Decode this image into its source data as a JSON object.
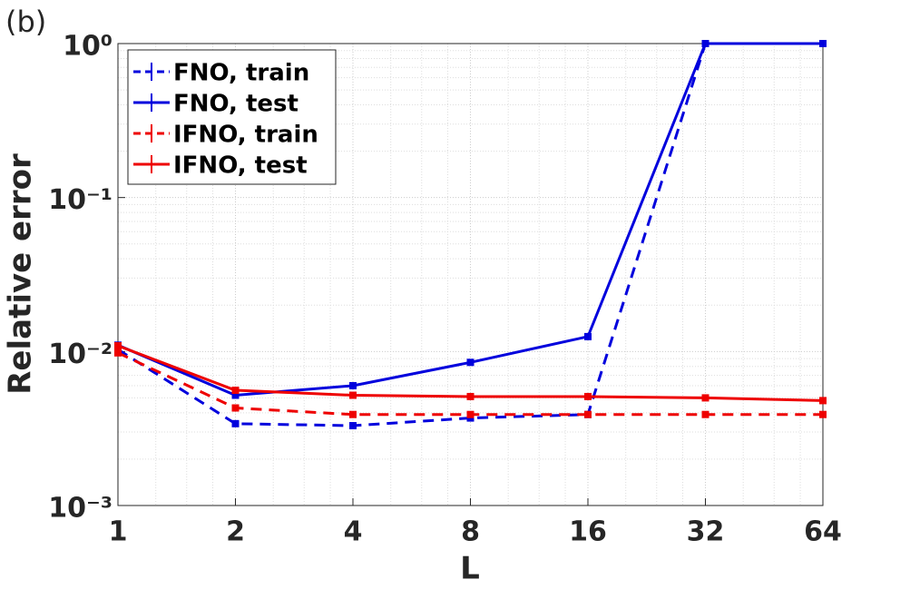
{
  "chart_data": {
    "type": "line",
    "panel_label": "(b)",
    "xlabel": "L",
    "ylabel": "Relative error",
    "x": [
      1,
      2,
      4,
      8,
      16,
      32,
      64
    ],
    "xscale": "log",
    "yscale": "log",
    "xlim": [
      1,
      64
    ],
    "xticks": [
      1,
      2,
      4,
      8,
      16,
      32,
      64
    ],
    "ylim": [
      0.001,
      1
    ],
    "yticks": [
      {
        "value": 0.001,
        "label": "10⁻³"
      },
      {
        "value": 0.01,
        "label": "10⁻²"
      },
      {
        "value": 0.1,
        "label": "10⁻¹"
      },
      {
        "value": 1,
        "label": "10⁰"
      }
    ],
    "grid": true,
    "legend": "upper left",
    "series": [
      {
        "name": "FNO, train",
        "color": "#0000dd",
        "linestyle": "dashed",
        "values": [
          0.0103,
          0.0034,
          0.0033,
          0.0037,
          0.0039,
          1.0,
          1.0
        ]
      },
      {
        "name": "FNO, test",
        "color": "#0000dd",
        "linestyle": "solid",
        "values": [
          0.011,
          0.0052,
          0.006,
          0.0085,
          0.0125,
          1.0,
          1.0
        ]
      },
      {
        "name": "IFNO, train",
        "color": "#ee0000",
        "linestyle": "dashed",
        "values": [
          0.0098,
          0.0043,
          0.0039,
          0.0039,
          0.0039,
          0.0039,
          0.0039
        ]
      },
      {
        "name": "IFNO, test",
        "color": "#ee0000",
        "linestyle": "solid",
        "values": [
          0.0109,
          0.0056,
          0.0052,
          0.0051,
          0.0051,
          0.005,
          0.0048
        ]
      }
    ]
  }
}
